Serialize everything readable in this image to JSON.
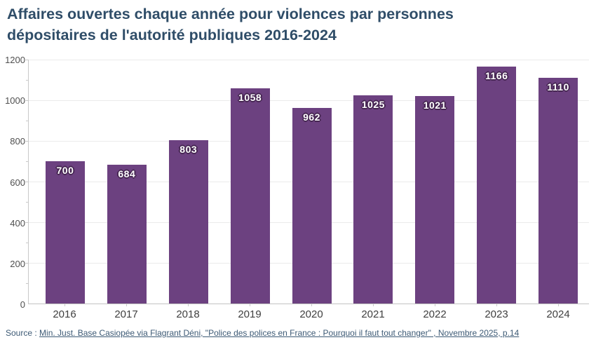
{
  "chart_data": {
    "type": "bar",
    "title": "Affaires ouvertes chaque année pour violences par personnes dépositaires de l'autorité publiques 2016-2024",
    "categories": [
      "2016",
      "2017",
      "2018",
      "2019",
      "2020",
      "2021",
      "2022",
      "2023",
      "2024"
    ],
    "values": [
      700,
      684,
      803,
      1058,
      962,
      1025,
      1021,
      1166,
      1110
    ],
    "xlabel": "",
    "ylabel": "",
    "ylim": [
      0,
      1200
    ],
    "ytick_step": 200,
    "ytick_minor_step": 100,
    "ytick_labels": [
      "0",
      "200",
      "400",
      "600",
      "800",
      "1000",
      "1200"
    ],
    "grid": "horizontal",
    "legend": "none",
    "value_labels_position": "inside-top",
    "bar_color": "#6c4180",
    "value_label_color": "#ffffff",
    "value_label_outline_color": "#462652"
  },
  "source": {
    "prefix": "Source : ",
    "link_text": "Min. Just. Base Casiopée via Flagrant Déni, \"Police des polices en France : Pourquoi il faut tout changer\" , Novembre 2025, p.14"
  },
  "colors": {
    "title": "#2f4d68",
    "axis_line": "#c9c9c9",
    "gridline": "#ebebeb",
    "ytick_label": "#4f4f4f",
    "xtick_label": "#3f3f3f",
    "source_text": "#3d5a75",
    "background": "#ffffff"
  }
}
